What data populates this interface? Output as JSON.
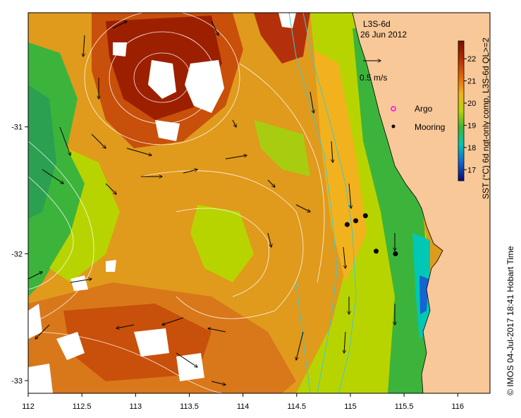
{
  "map": {
    "product": "L3S-6d",
    "date": "26 Jun 2012",
    "scale_label": "0.5 m/s",
    "legend": {
      "argo": "Argo",
      "mooring": "Mooring"
    },
    "colorbar": {
      "title": "SST (°C) 6d ngt-only comp, L3S-6d QL>=2",
      "ticks": [
        "22",
        "21",
        "20",
        "19",
        "18",
        "17"
      ],
      "colors": [
        "#7a0f00",
        "#b42a00",
        "#e36a00",
        "#f2b21e",
        "#b8d400",
        "#3cb43c",
        "#00c8b4",
        "#1464d2",
        "#0a0a78"
      ]
    },
    "x_ticks": [
      "112",
      "112.5",
      "113",
      "113.5",
      "114",
      "114.5",
      "115",
      "115.5",
      "116"
    ],
    "y_ticks": [
      "-31",
      "-32",
      "-33"
    ],
    "credit": "© IMOS 04-Jul-2017 18:41 Hobart Time"
  },
  "chart_data": {
    "type": "heatmap",
    "title": "L3S-6d 26 Jun 2012",
    "xlim": [
      112,
      116.3
    ],
    "ylim": [
      -33.1,
      -30.1
    ],
    "x_ticks": [
      112,
      112.5,
      113,
      113.5,
      114,
      114.5,
      115,
      115.5,
      116
    ],
    "y_ticks": [
      -31,
      -32,
      -33
    ],
    "colorbar_range": [
      16.5,
      22.8
    ],
    "moorings": [
      {
        "lon": 114.97,
        "lat": -31.77
      },
      {
        "lon": 115.05,
        "lat": -31.74
      },
      {
        "lon": 115.14,
        "lat": -31.7
      },
      {
        "lon": 115.24,
        "lat": -31.98
      },
      {
        "lon": 115.42,
        "lat": -32.0
      }
    ]
  }
}
